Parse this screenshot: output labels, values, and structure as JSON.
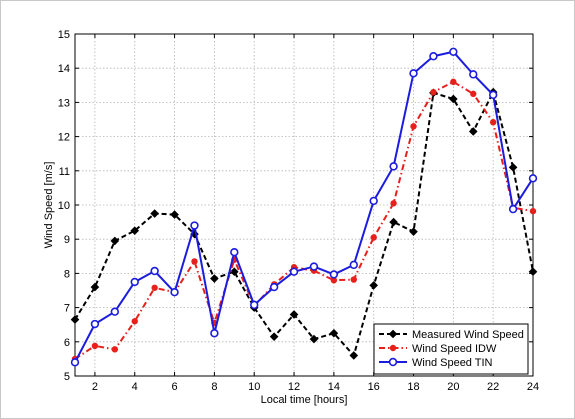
{
  "chart_data": {
    "type": "line",
    "title": "",
    "xlabel": "Local time [hours]",
    "ylabel": "Wind Speed [m/s]",
    "xlim": [
      1,
      24
    ],
    "ylim": [
      5,
      15
    ],
    "xticks": [
      2,
      4,
      6,
      8,
      10,
      12,
      14,
      16,
      18,
      20,
      22,
      24
    ],
    "yticks": [
      5,
      6,
      7,
      8,
      9,
      10,
      11,
      12,
      13,
      14,
      15
    ],
    "grid": true,
    "legend_position": "bottom-right",
    "x": [
      1,
      2,
      3,
      4,
      5,
      6,
      7,
      8,
      9,
      10,
      11,
      12,
      13,
      14,
      15,
      16,
      17,
      18,
      19,
      20,
      21,
      22,
      23,
      24
    ],
    "series": [
      {
        "name": "Measured Wind Speed",
        "color": "#000000",
        "marker": "diamond",
        "linestyle": "dashed",
        "values": [
          6.65,
          7.6,
          8.95,
          9.25,
          9.75,
          9.72,
          9.15,
          7.85,
          8.05,
          7.0,
          6.15,
          6.8,
          6.08,
          6.25,
          5.6,
          7.65,
          9.5,
          9.22,
          13.28,
          13.1,
          12.15,
          13.3,
          11.1,
          8.05
        ]
      },
      {
        "name": "Wind Speed IDW",
        "color": "#e8201c",
        "marker": "circle",
        "linestyle": "dashdot",
        "values": [
          5.5,
          5.88,
          5.78,
          6.6,
          7.58,
          7.45,
          8.35,
          6.55,
          8.4,
          7.05,
          7.68,
          8.18,
          8.08,
          7.8,
          7.82,
          9.05,
          10.05,
          12.3,
          13.3,
          13.6,
          13.25,
          12.42,
          9.92,
          9.82
        ]
      },
      {
        "name": "Wind Speed TIN",
        "color": "#1c1cde",
        "marker": "circle",
        "linestyle": "solid",
        "values": [
          5.4,
          6.52,
          6.88,
          7.75,
          8.07,
          7.45,
          9.4,
          6.25,
          8.62,
          7.08,
          7.6,
          8.05,
          8.2,
          7.97,
          8.25,
          10.12,
          11.13,
          13.85,
          14.35,
          14.48,
          13.82,
          13.22,
          9.88,
          10.78
        ]
      }
    ]
  }
}
